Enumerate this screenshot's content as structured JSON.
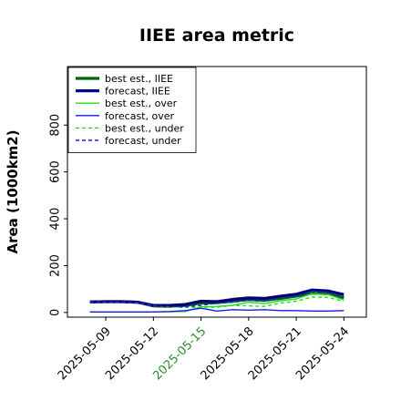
{
  "chart_data": {
    "type": "line",
    "title": "IIEE area metric",
    "xlabel": "",
    "ylabel": "Area (1000km2)",
    "ylim": [
      -20,
      1050
    ],
    "xlim": [
      "2025-05-06T14:00",
      "2025-05-25T10:00"
    ],
    "yticks": [
      0,
      200,
      400,
      600,
      800
    ],
    "xticks": [
      "2025-05-09",
      "2025-05-12",
      "2025-05-15",
      "2025-05-18",
      "2025-05-21",
      "2025-05-24"
    ],
    "highlighted_xtick": "2025-05-15",
    "highlight_color": "#2e8b2e",
    "legend_position": "upper-left",
    "grid": false,
    "dates": [
      "2025-05-08",
      "2025-05-09",
      "2025-05-10",
      "2025-05-11",
      "2025-05-12",
      "2025-05-13",
      "2025-05-14",
      "2025-05-15",
      "2025-05-16",
      "2025-05-17",
      "2025-05-18",
      "2025-05-19",
      "2025-05-20",
      "2025-05-21",
      "2025-05-22",
      "2025-05-23",
      "2025-05-24"
    ],
    "series": [
      {
        "name": "best est., IIEE",
        "color": "#006400",
        "style": "solid",
        "width": 3.2,
        "values": [
          45,
          46,
          46,
          44,
          28,
          26,
          30,
          40,
          42,
          48,
          55,
          52,
          60,
          70,
          82,
          80,
          62
        ]
      },
      {
        "name": "forecast, IIEE",
        "color": "#00007a",
        "style": "solid",
        "width": 3.2,
        "values": [
          45,
          46,
          46,
          44,
          30,
          30,
          34,
          48,
          46,
          56,
          62,
          60,
          70,
          78,
          96,
          92,
          76
        ]
      },
      {
        "name": "best est., over",
        "color": "#22dd22",
        "style": "solid",
        "width": 1.4,
        "values": [
          2,
          2,
          2,
          2,
          2,
          3,
          4,
          24,
          26,
          30,
          44,
          38,
          50,
          58,
          80,
          76,
          54
        ]
      },
      {
        "name": "forecast, over",
        "color": "#1a1aee",
        "style": "solid",
        "width": 1.4,
        "values": [
          2,
          2,
          2,
          2,
          2,
          4,
          8,
          18,
          6,
          12,
          10,
          12,
          8,
          8,
          6,
          6,
          8
        ]
      },
      {
        "name": "best est., under",
        "color": "#22dd22",
        "style": "dashed",
        "width": 1.4,
        "values": [
          44,
          44,
          44,
          42,
          28,
          24,
          22,
          22,
          22,
          30,
          28,
          26,
          40,
          48,
          66,
          64,
          48
        ]
      },
      {
        "name": "forecast, under",
        "color": "#1a1aee",
        "style": "dashed",
        "width": 1.4,
        "values": [
          44,
          44,
          44,
          42,
          28,
          26,
          24,
          30,
          40,
          44,
          52,
          48,
          62,
          70,
          90,
          86,
          68
        ]
      }
    ]
  }
}
